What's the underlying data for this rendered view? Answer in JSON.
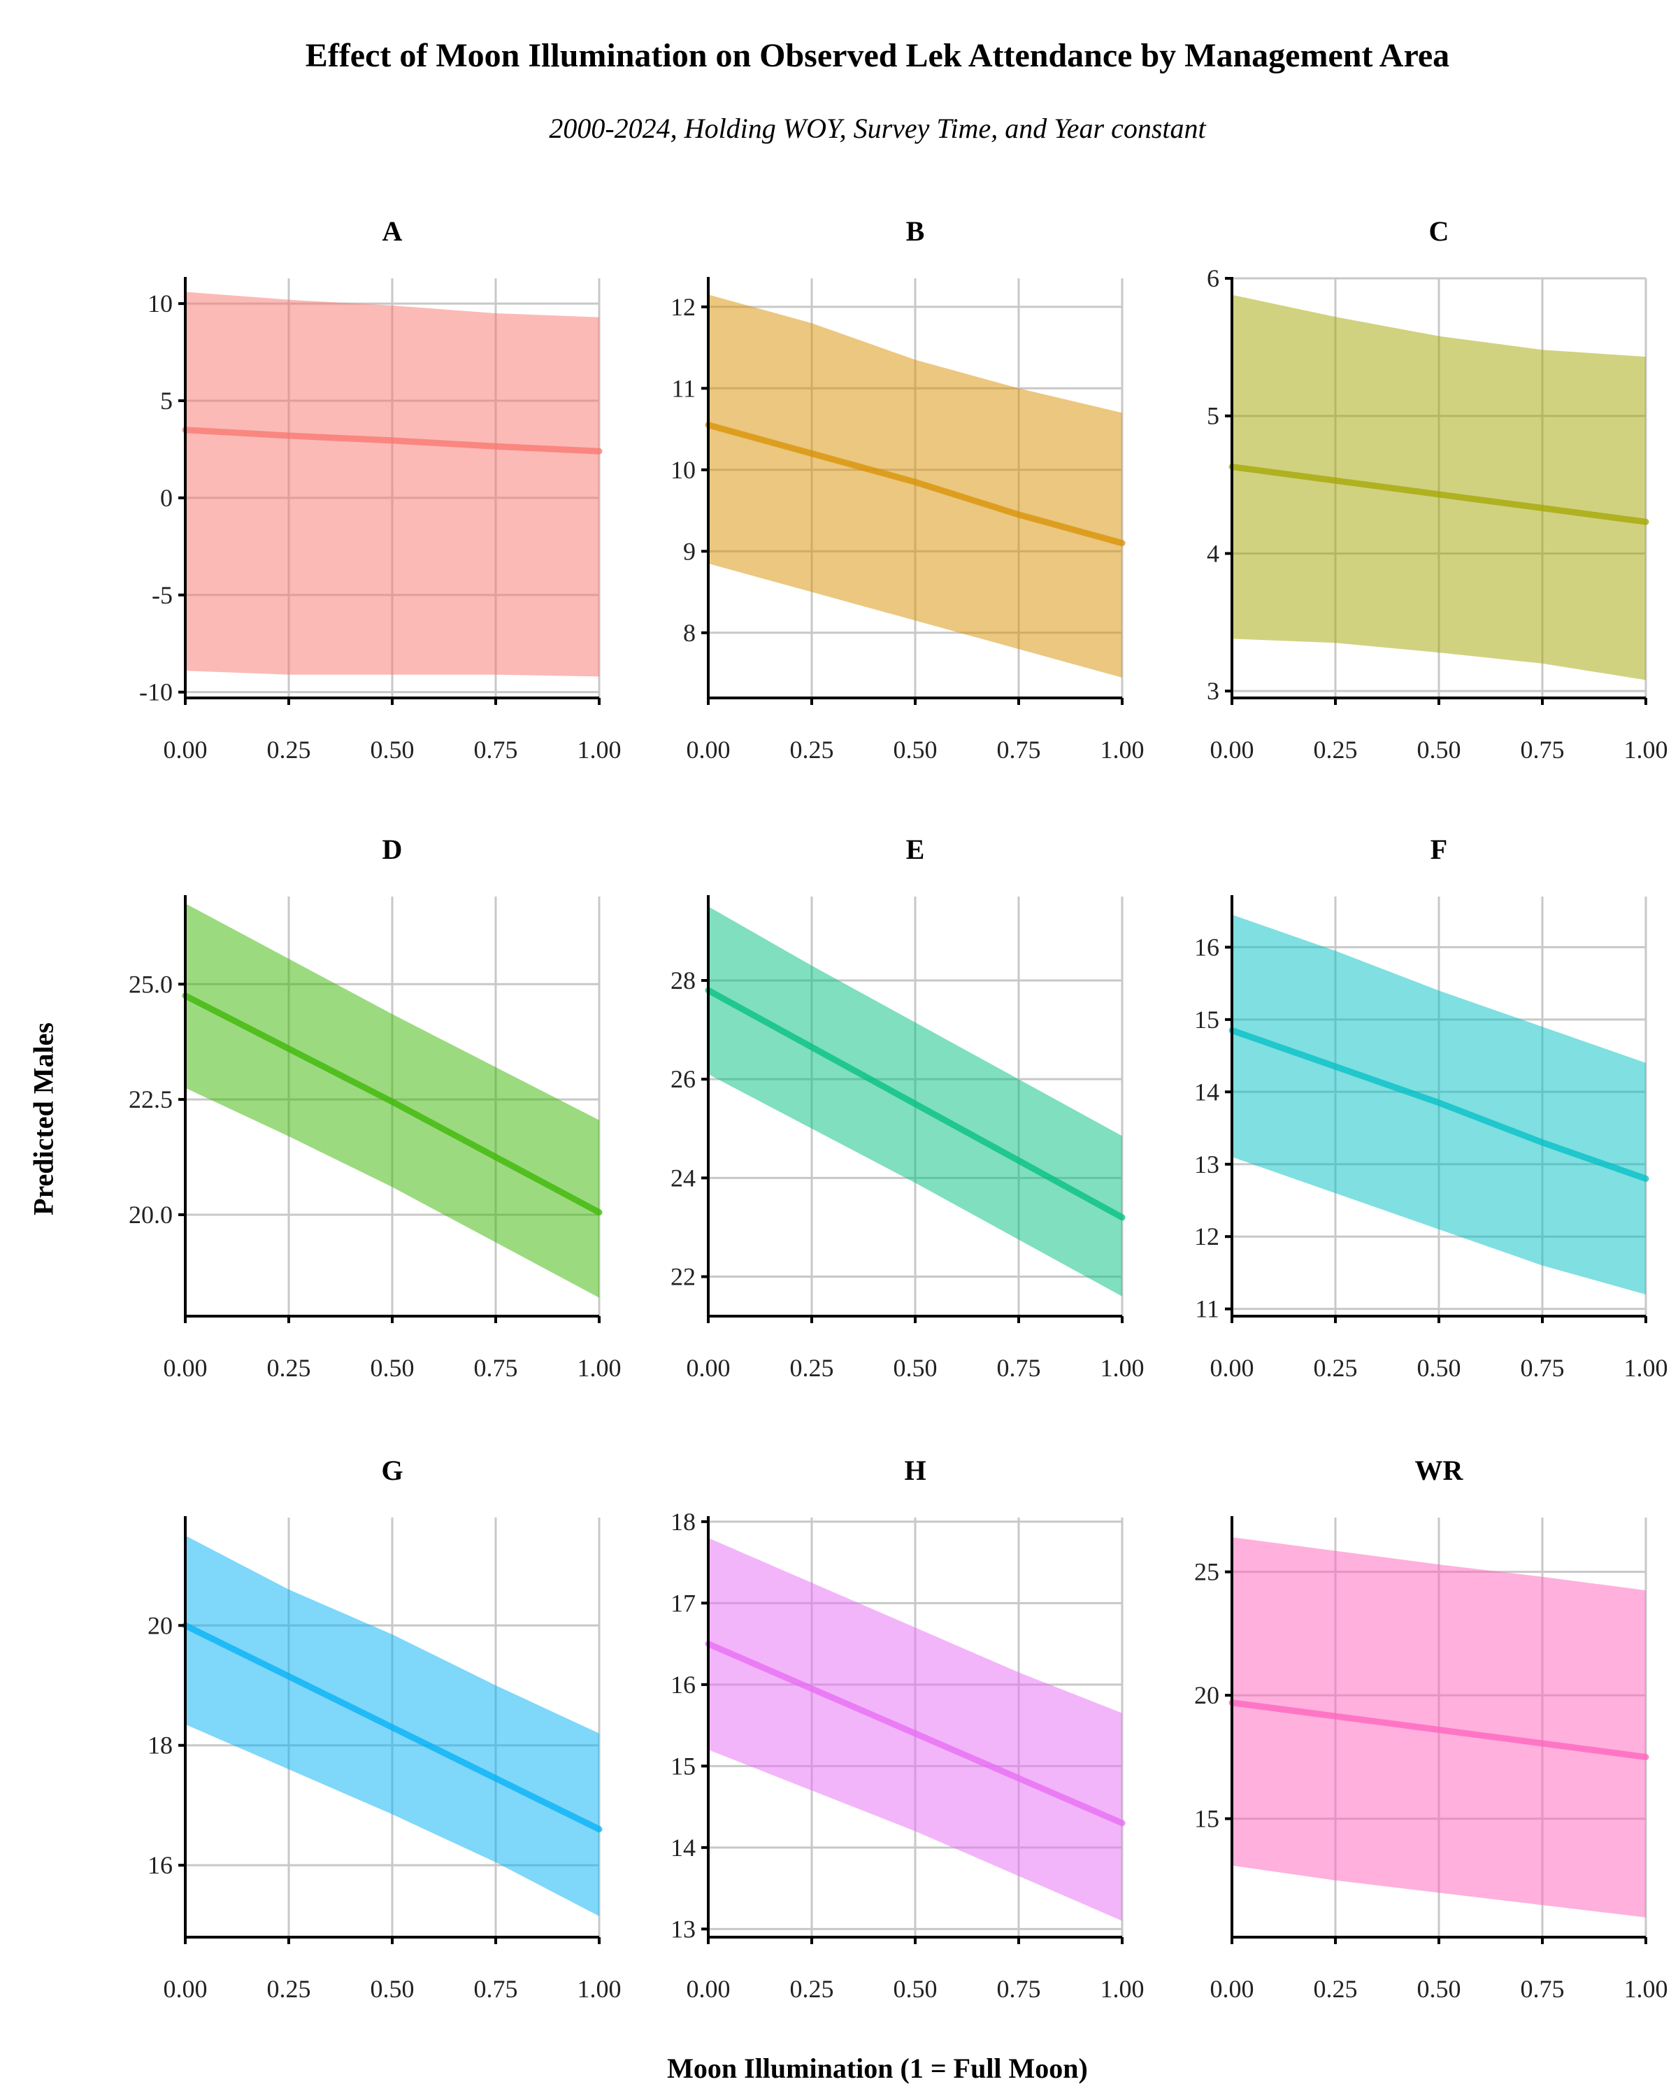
{
  "chart_data": {
    "type": "area",
    "title": "Effect of Moon Illumination on Observed Lek Attendance by Management Area",
    "subtitle": "2000-2024, Holding WOY, Survey Time, and Year constant",
    "xlabel": "Moon Illumination (1 = Full Moon)",
    "ylabel": "Predicted Males",
    "grid": true,
    "x": [
      0,
      0.25,
      0.5,
      0.75,
      1
    ],
    "x_ticks": [
      "0.00",
      "0.25",
      "0.50",
      "0.75",
      "1.00"
    ],
    "panels": [
      {
        "name": "A",
        "color": "#F8766D",
        "ylim": [
          -10.3,
          11.3
        ],
        "y_ticks": [
          {
            "v": 10,
            "label": "10"
          },
          {
            "v": 5,
            "label": "5"
          },
          {
            "v": 0,
            "label": "0"
          },
          {
            "v": -5,
            "label": "-5"
          },
          {
            "v": -10,
            "label": "-10"
          }
        ],
        "fit": [
          3.5,
          3.2,
          2.95,
          2.65,
          2.4
        ],
        "lower": [
          -8.9,
          -9.1,
          -9.1,
          -9.1,
          -9.2
        ],
        "upper": [
          10.6,
          10.2,
          9.9,
          9.5,
          9.3
        ]
      },
      {
        "name": "B",
        "color": "#D89000",
        "ylim": [
          7.2,
          12.35
        ],
        "y_ticks": [
          {
            "v": 12,
            "label": "12"
          },
          {
            "v": 11,
            "label": "11"
          },
          {
            "v": 10,
            "label": "10"
          },
          {
            "v": 9,
            "label": "9"
          },
          {
            "v": 8,
            "label": "8"
          }
        ],
        "fit": [
          10.55,
          10.2,
          9.85,
          9.45,
          9.1
        ],
        "lower": [
          8.85,
          8.5,
          8.15,
          7.8,
          7.45
        ],
        "upper": [
          12.15,
          11.8,
          11.35,
          11.0,
          10.7
        ]
      },
      {
        "name": "C",
        "color": "#A3A500",
        "ylim": [
          2.95,
          6.0
        ],
        "y_ticks": [
          {
            "v": 6,
            "label": "6"
          },
          {
            "v": 5,
            "label": "5"
          },
          {
            "v": 4,
            "label": "4"
          },
          {
            "v": 3,
            "label": "3"
          }
        ],
        "fit": [
          4.63,
          4.53,
          4.43,
          4.33,
          4.23
        ],
        "lower": [
          3.38,
          3.35,
          3.28,
          3.2,
          3.08
        ],
        "upper": [
          5.88,
          5.72,
          5.58,
          5.48,
          5.43
        ]
      },
      {
        "name": "D",
        "color": "#39B600",
        "ylim": [
          17.8,
          26.9
        ],
        "y_ticks": [
          {
            "v": 25,
            "label": "25.0"
          },
          {
            "v": 22.5,
            "label": "22.5"
          },
          {
            "v": 20,
            "label": "20.0"
          }
        ],
        "fit": [
          24.75,
          23.6,
          22.45,
          21.25,
          20.05
        ],
        "lower": [
          22.75,
          21.7,
          20.6,
          19.4,
          18.2
        ],
        "upper": [
          26.75,
          25.55,
          24.35,
          23.2,
          22.05
        ]
      },
      {
        "name": "E",
        "color": "#00BF7D",
        "ylim": [
          21.2,
          29.7
        ],
        "y_ticks": [
          {
            "v": 28,
            "label": "28"
          },
          {
            "v": 26,
            "label": "26"
          },
          {
            "v": 24,
            "label": "24"
          },
          {
            "v": 22,
            "label": "22"
          }
        ],
        "fit": [
          27.8,
          26.65,
          25.5,
          24.35,
          23.2
        ],
        "lower": [
          26.1,
          25.0,
          23.9,
          22.75,
          21.6
        ],
        "upper": [
          29.5,
          28.3,
          27.15,
          26.0,
          24.85
        ]
      },
      {
        "name": "F",
        "color": "#00BFC4",
        "ylim": [
          10.9,
          16.7
        ],
        "y_ticks": [
          {
            "v": 16,
            "label": "16"
          },
          {
            "v": 15,
            "label": "15"
          },
          {
            "v": 14,
            "label": "14"
          },
          {
            "v": 13,
            "label": "13"
          },
          {
            "v": 12,
            "label": "12"
          },
          {
            "v": 11,
            "label": "11"
          }
        ],
        "fit": [
          14.85,
          14.35,
          13.85,
          13.3,
          12.8
        ],
        "lower": [
          13.1,
          12.6,
          12.1,
          11.6,
          11.2
        ],
        "upper": [
          16.45,
          15.95,
          15.4,
          14.9,
          14.4
        ]
      },
      {
        "name": "G",
        "color": "#00B0F6",
        "ylim": [
          14.8,
          21.8
        ],
        "y_ticks": [
          {
            "v": 20,
            "label": "20"
          },
          {
            "v": 18,
            "label": "18"
          },
          {
            "v": 16,
            "label": "16"
          }
        ],
        "fit": [
          20.0,
          19.15,
          18.3,
          17.45,
          16.6
        ],
        "lower": [
          18.35,
          17.6,
          16.85,
          16.05,
          15.15
        ],
        "upper": [
          21.5,
          20.6,
          19.85,
          19.0,
          18.2
        ]
      },
      {
        "name": "H",
        "color": "#E76BF3",
        "ylim": [
          12.9,
          18.05
        ],
        "y_ticks": [
          {
            "v": 18,
            "label": "18"
          },
          {
            "v": 17,
            "label": "17"
          },
          {
            "v": 16,
            "label": "16"
          },
          {
            "v": 15,
            "label": "15"
          },
          {
            "v": 14,
            "label": "14"
          },
          {
            "v": 13,
            "label": "13"
          }
        ],
        "fit": [
          16.5,
          15.95,
          15.4,
          14.85,
          14.3
        ],
        "lower": [
          15.2,
          14.7,
          14.2,
          13.65,
          13.1
        ],
        "upper": [
          17.8,
          17.25,
          16.7,
          16.15,
          15.65
        ]
      },
      {
        "name": "WR",
        "color": "#FF62BC",
        "ylim": [
          10.2,
          27.2
        ],
        "y_ticks": [
          {
            "v": 25,
            "label": "25"
          },
          {
            "v": 20,
            "label": "20"
          },
          {
            "v": 15,
            "label": "15"
          }
        ],
        "fit": [
          19.7,
          19.15,
          18.6,
          18.05,
          17.5
        ],
        "lower": [
          13.1,
          12.5,
          12.0,
          11.5,
          11.0
        ],
        "upper": [
          26.4,
          25.85,
          25.3,
          24.8,
          24.25
        ]
      }
    ]
  }
}
